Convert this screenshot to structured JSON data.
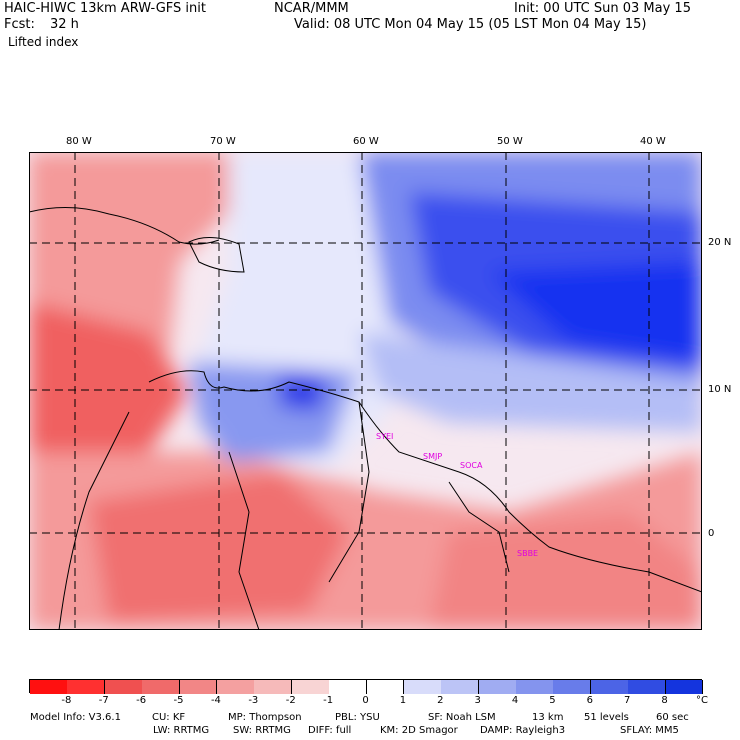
{
  "header": {
    "model": "HAIC-HIWC 13km ARW-GFS init",
    "org": "NCAR/MMM",
    "init": "Init: 00 UTC Sun 03 May 15",
    "fcst_label": "Fcst:",
    "fcst_value": "32 h",
    "valid": "Valid: 08 UTC Mon 04 May 15 (05 LST Mon 04 May 15)",
    "field": "Lifted index"
  },
  "map": {
    "lon_labels": [
      "80 W",
      "70 W",
      "60 W",
      "50 W",
      "40 W"
    ],
    "lat_labels": [
      "20 N",
      "10 N",
      "0"
    ],
    "sites": [
      "SYEI",
      "SMJP",
      "SOCA",
      "SBBE"
    ],
    "colors": {
      "strong_negative": "#f04040",
      "negative": "#f6a0a0",
      "neutral": "#f4f4ff",
      "positive": "#9aa8f4",
      "strong_positive": "#1a30f0"
    }
  },
  "colorbar": {
    "ticks": [
      "-8",
      "-7",
      "-6",
      "-5",
      "-4",
      "-3",
      "-2",
      "-1",
      "0",
      "1",
      "2",
      "3",
      "4",
      "5",
      "6",
      "7",
      "8"
    ],
    "unit": "°C",
    "colors": [
      "#ff1010",
      "#ff3030",
      "#f05050",
      "#f06a6a",
      "#f28686",
      "#f4a0a0",
      "#f6baba",
      "#f8d4d4",
      "#ffffff",
      "#ffffff",
      "#d8dcfa",
      "#bcc4f6",
      "#a0acf2",
      "#8494ee",
      "#687cea",
      "#4c64e6",
      "#304ce2",
      "#1434de"
    ]
  },
  "footer": {
    "line1": [
      "Model Info: V3.6.1",
      "CU: KF",
      "MP: Thompson",
      "PBL: YSU",
      "SF: Noah LSM",
      "13 km",
      "51 levels",
      "60 sec"
    ],
    "line2": [
      "LW: RRTMG",
      "SW: RRTMG",
      "DIFF: full",
      "KM: 2D Smagor",
      "DAMP: Rayleigh3",
      "SFLAY: MM5"
    ]
  }
}
